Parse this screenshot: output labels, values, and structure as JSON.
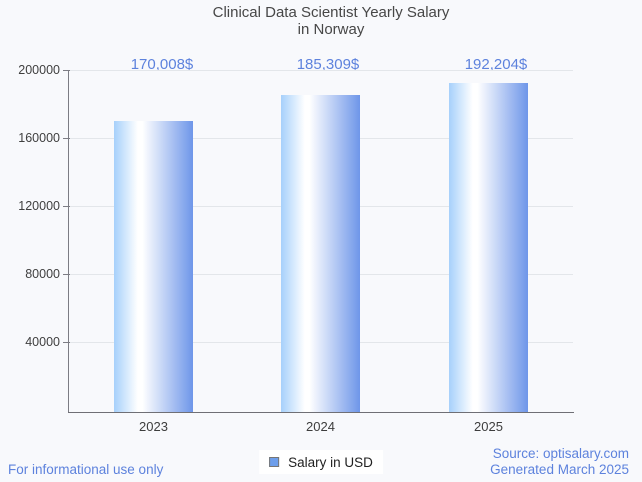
{
  "chart_data": {
    "type": "bar",
    "title": "Clinical Data Scientist Yearly Salary in Norway",
    "title_lines": [
      "Clinical Data Scientist Yearly Salary",
      "in Norway"
    ],
    "categories": [
      "2023",
      "2024",
      "2025"
    ],
    "series": [
      {
        "name": "Salary in USD",
        "values": [
          170008,
          185309,
          192204
        ]
      }
    ],
    "value_labels": [
      "170,008$",
      "185,309$",
      "192,204$"
    ],
    "ylim": [
      0,
      200000
    ],
    "yticks": [
      40000,
      80000,
      120000,
      160000,
      200000
    ],
    "ytick_labels": [
      "40000",
      "80000",
      "120000",
      "160000",
      "200000"
    ],
    "grid": true,
    "legend_position": "bottom-center",
    "legend_label": "Salary in USD"
  },
  "footer": {
    "disclaimer": "For informational use only",
    "source_line1": "Source: optisalary.com",
    "source_line2": "Generated March 2025"
  },
  "colors": {
    "accent_text_blue": "#5d82dd",
    "bar_gradient_left": "#a6d0fb",
    "bar_gradient_mid": "#ffffff",
    "bar_gradient_right": "#6e96e9",
    "legend_marker_fill": "#6d9eeb",
    "legend_marker_border": "#757575"
  }
}
